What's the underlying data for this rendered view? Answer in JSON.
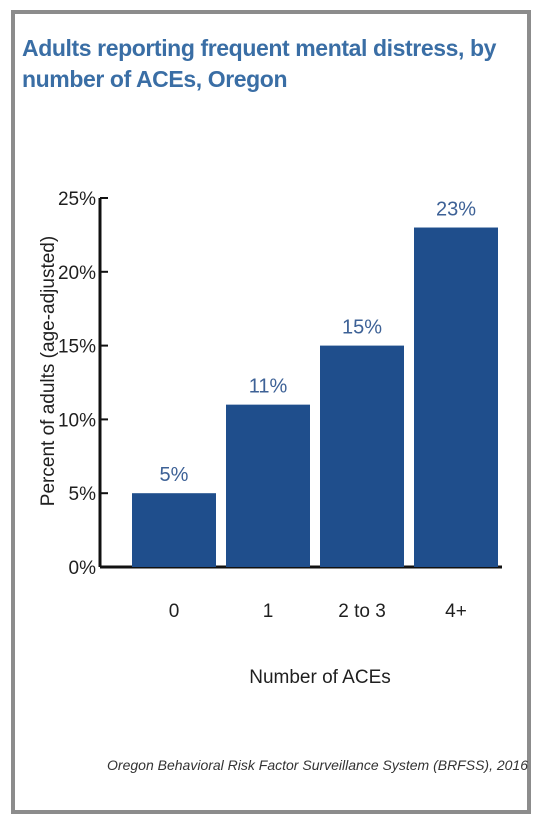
{
  "chart_data": {
    "type": "bar",
    "title": "Adults reporting frequent mental distress, by number of ACEs, Oregon",
    "xlabel": "Number of ACEs",
    "ylabel": "Percent of adults (age-adjusted)",
    "categories": [
      "0",
      "1",
      "2 to 3",
      "4+"
    ],
    "values": [
      5,
      11,
      15,
      23
    ],
    "data_labels": [
      "5%",
      "11%",
      "15%",
      "23%"
    ],
    "yticks": [
      "0%",
      "5%",
      "10%",
      "15%",
      "20%",
      "25%"
    ],
    "ylim": [
      0,
      25
    ],
    "grid": false,
    "bar_color": "#1f4e8c"
  },
  "source": "Oregon Behavioral Risk Factor Surveillance System (BRFSS), 2016"
}
